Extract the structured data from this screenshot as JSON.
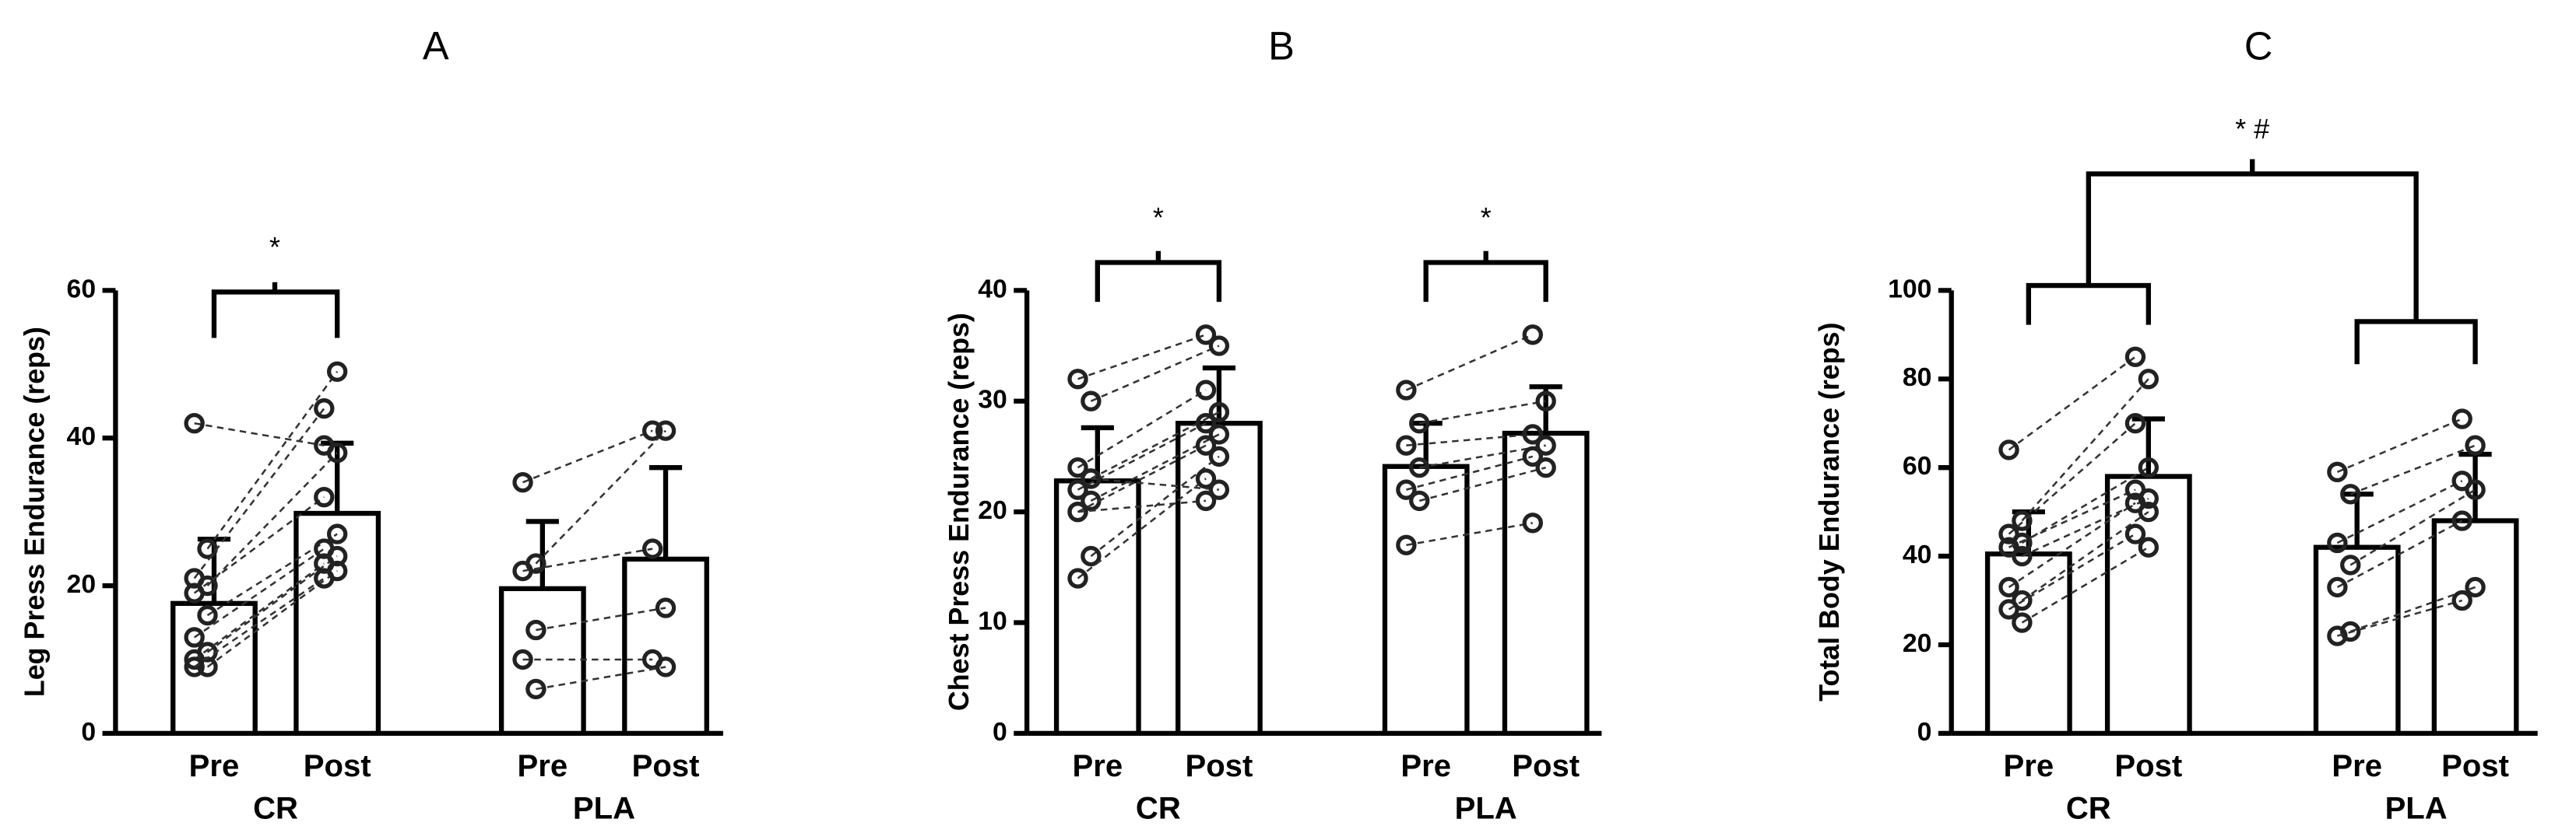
{
  "chart_data": [
    {
      "type": "bar",
      "title": "A",
      "y_label": "Leg Press Endurance (reps)",
      "categories": [
        "Pre",
        "Post",
        "Pre",
        "Post"
      ],
      "groups": [
        "CR",
        "PLA"
      ],
      "values": [
        17.6,
        29.8,
        19.6,
        23.6
      ],
      "errors": [
        8.7,
        9.5,
        9.1,
        12.4
      ],
      "pairs": [
        [
          [
            42,
            39
          ],
          [
            25,
            49
          ],
          [
            21,
            44
          ],
          [
            20,
            38
          ],
          [
            19,
            32
          ],
          [
            16,
            27
          ],
          [
            13,
            25
          ],
          [
            11,
            24
          ],
          [
            10,
            23
          ],
          [
            9,
            22
          ],
          [
            9,
            21
          ]
        ],
        [
          [
            34,
            41
          ],
          [
            23,
            41
          ],
          [
            22,
            25
          ],
          [
            14,
            17
          ],
          [
            10,
            10
          ],
          [
            6,
            9
          ]
        ]
      ],
      "annotations": [
        "*"
      ],
      "ylim": [
        0,
        60
      ],
      "yticks": [
        0,
        20,
        40,
        60
      ]
    },
    {
      "type": "bar",
      "title": "B",
      "y_label": "Chest Press Endurance (reps)",
      "categories": [
        "Pre",
        "Post",
        "Pre",
        "Post"
      ],
      "groups": [
        "CR",
        "PLA"
      ],
      "values": [
        22.8,
        28,
        24.1,
        27.1
      ],
      "errors": [
        4.8,
        5,
        3.9,
        4.2
      ],
      "pairs": [
        [
          [
            32,
            36
          ],
          [
            30,
            35
          ],
          [
            24,
            31
          ],
          [
            23,
            29
          ],
          [
            22,
            28
          ],
          [
            21,
            27
          ],
          [
            20,
            26
          ],
          [
            16,
            25
          ],
          [
            14,
            23
          ],
          [
            23,
            22
          ],
          [
            20,
            21
          ]
        ],
        [
          [
            31,
            36
          ],
          [
            28,
            30
          ],
          [
            26,
            27
          ],
          [
            24,
            26
          ],
          [
            22,
            25
          ],
          [
            21,
            24
          ],
          [
            17,
            19
          ]
        ]
      ],
      "annotations": [
        "*",
        "*"
      ],
      "ylim": [
        0,
        40
      ],
      "yticks": [
        0,
        10,
        20,
        30,
        40
      ]
    },
    {
      "type": "bar",
      "title": "C",
      "y_label": "Total Body Endurance (reps)",
      "categories": [
        "Pre",
        "Post",
        "Pre",
        "Post"
      ],
      "groups": [
        "CR",
        "PLA"
      ],
      "values": [
        40.5,
        58,
        42,
        48
      ],
      "errors": [
        9.5,
        13,
        12,
        15
      ],
      "pairs": [
        [
          [
            64,
            85
          ],
          [
            48,
            80
          ],
          [
            45,
            70
          ],
          [
            43,
            60
          ],
          [
            42,
            55
          ],
          [
            40,
            53
          ],
          [
            33,
            52
          ],
          [
            30,
            50
          ],
          [
            28,
            45
          ],
          [
            25,
            42
          ]
        ],
        [
          [
            59,
            71
          ],
          [
            54,
            65
          ],
          [
            43,
            57
          ],
          [
            38,
            55
          ],
          [
            33,
            48
          ],
          [
            23,
            33
          ],
          [
            22,
            30
          ]
        ]
      ],
      "annotations": [
        "* #"
      ],
      "ylim": [
        0,
        100
      ],
      "yticks": [
        0,
        20,
        40,
        60,
        80,
        100
      ]
    }
  ]
}
